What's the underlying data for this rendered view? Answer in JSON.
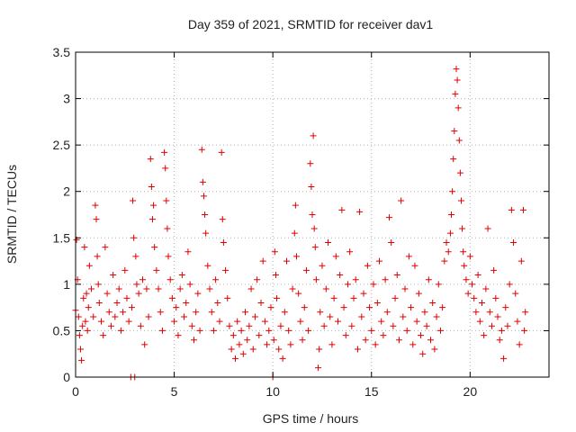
{
  "chart_data": {
    "type": "scatter",
    "title": "Day 359 of 2021, SRMTID for receiver dav1",
    "xlabel": "GPS time / hours",
    "ylabel": "SRMTID / TECUs",
    "xlim": [
      0,
      24
    ],
    "ylim": [
      0,
      3.5
    ],
    "x_ticks": [
      0,
      5,
      10,
      15,
      20
    ],
    "y_ticks": [
      0,
      0.5,
      1,
      1.5,
      2,
      2.5,
      3,
      3.5
    ],
    "x_tick_labels": [
      "0",
      "5",
      "10",
      "15",
      "20"
    ],
    "y_tick_labels": [
      "0",
      "0.5",
      "1",
      "1.5",
      "2",
      "2.5",
      "3",
      "3.5"
    ],
    "grid": true,
    "marker": "+",
    "series": [
      {
        "name": "SRMTID",
        "color": "#e00000",
        "points": [
          [
            0.0,
            0.72
          ],
          [
            0.05,
            1.48
          ],
          [
            0.1,
            1.05
          ],
          [
            0.15,
            0.65
          ],
          [
            0.2,
            0.45
          ],
          [
            0.25,
            0.3
          ],
          [
            0.3,
            0.18
          ],
          [
            0.35,
            0.55
          ],
          [
            0.4,
            0.85
          ],
          [
            0.45,
            1.4
          ],
          [
            0.5,
            0.6
          ],
          [
            0.55,
            0.9
          ],
          [
            0.6,
            0.5
          ],
          [
            0.65,
            0.75
          ],
          [
            0.7,
            1.2
          ],
          [
            0.8,
            0.95
          ],
          [
            0.9,
            0.65
          ],
          [
            1.0,
            1.85
          ],
          [
            1.05,
            1.7
          ],
          [
            1.1,
            1.3
          ],
          [
            1.15,
            1.0
          ],
          [
            1.2,
            0.8
          ],
          [
            1.3,
            0.6
          ],
          [
            1.4,
            0.45
          ],
          [
            1.5,
            1.4
          ],
          [
            1.6,
            0.9
          ],
          [
            1.7,
            0.7
          ],
          [
            1.8,
            0.55
          ],
          [
            1.9,
            1.1
          ],
          [
            2.0,
            0.65
          ],
          [
            2.1,
            0.8
          ],
          [
            2.2,
            0.95
          ],
          [
            2.3,
            0.5
          ],
          [
            2.4,
            0.7
          ],
          [
            2.5,
            1.15
          ],
          [
            2.6,
            0.85
          ],
          [
            2.7,
            0.6
          ],
          [
            2.8,
            0.0
          ],
          [
            2.85,
            0.75
          ],
          [
            2.9,
            1.9
          ],
          [
            2.95,
            1.5
          ],
          [
            3.0,
            0.0
          ],
          [
            3.05,
            1.3
          ],
          [
            3.1,
            1.0
          ],
          [
            3.2,
            0.9
          ],
          [
            3.3,
            0.55
          ],
          [
            3.4,
            1.05
          ],
          [
            3.5,
            0.35
          ],
          [
            3.6,
            0.95
          ],
          [
            3.7,
            0.65
          ],
          [
            3.8,
            2.35
          ],
          [
            3.85,
            2.05
          ],
          [
            3.9,
            1.7
          ],
          [
            3.95,
            1.85
          ],
          [
            4.0,
            1.4
          ],
          [
            4.1,
            1.15
          ],
          [
            4.2,
            0.95
          ],
          [
            4.3,
            0.7
          ],
          [
            4.4,
            0.5
          ],
          [
            4.5,
            2.42
          ],
          [
            4.55,
            2.25
          ],
          [
            4.6,
            1.9
          ],
          [
            4.65,
            1.6
          ],
          [
            4.7,
            1.3
          ],
          [
            4.8,
            1.05
          ],
          [
            4.9,
            0.85
          ],
          [
            5.0,
            0.6
          ],
          [
            5.1,
            0.75
          ],
          [
            5.2,
            0.45
          ],
          [
            5.3,
            0.95
          ],
          [
            5.4,
            1.1
          ],
          [
            5.5,
            0.65
          ],
          [
            5.6,
            0.8
          ],
          [
            5.7,
            1.35
          ],
          [
            5.8,
            1.0
          ],
          [
            5.9,
            0.55
          ],
          [
            6.0,
            0.4
          ],
          [
            6.1,
            0.7
          ],
          [
            6.2,
            0.9
          ],
          [
            6.3,
            0.5
          ],
          [
            6.4,
            2.45
          ],
          [
            6.45,
            2.1
          ],
          [
            6.5,
            1.95
          ],
          [
            6.55,
            1.75
          ],
          [
            6.6,
            1.55
          ],
          [
            6.7,
            1.2
          ],
          [
            6.8,
            0.95
          ],
          [
            6.9,
            0.7
          ],
          [
            7.0,
            0.5
          ],
          [
            7.1,
            1.05
          ],
          [
            7.2,
            0.8
          ],
          [
            7.3,
            0.6
          ],
          [
            7.4,
            2.42
          ],
          [
            7.45,
            1.7
          ],
          [
            7.5,
            1.45
          ],
          [
            7.6,
            1.15
          ],
          [
            7.7,
            0.85
          ],
          [
            7.8,
            0.55
          ],
          [
            7.9,
            0.3
          ],
          [
            8.0,
            0.45
          ],
          [
            8.1,
            0.2
          ],
          [
            8.2,
            0.6
          ],
          [
            8.3,
            0.35
          ],
          [
            8.4,
            0.5
          ],
          [
            8.5,
            0.25
          ],
          [
            8.6,
            0.7
          ],
          [
            8.7,
            0.4
          ],
          [
            8.8,
            0.55
          ],
          [
            8.9,
            0.95
          ],
          [
            9.0,
            0.3
          ],
          [
            9.1,
            0.65
          ],
          [
            9.2,
            1.05
          ],
          [
            9.3,
            0.45
          ],
          [
            9.4,
            0.8
          ],
          [
            9.5,
            1.25
          ],
          [
            9.6,
            0.6
          ],
          [
            9.7,
            0.35
          ],
          [
            9.8,
            0.5
          ],
          [
            9.9,
            0.75
          ],
          [
            10.0,
            0.0
          ],
          [
            10.05,
            0.4
          ],
          [
            10.1,
            1.35
          ],
          [
            10.15,
            1.1
          ],
          [
            10.2,
            0.85
          ],
          [
            10.3,
            0.3
          ],
          [
            10.4,
            0.55
          ],
          [
            10.5,
            0.2
          ],
          [
            10.6,
            0.7
          ],
          [
            10.7,
            1.25
          ],
          [
            10.8,
            0.5
          ],
          [
            10.9,
            0.35
          ],
          [
            11.0,
            0.95
          ],
          [
            11.1,
            1.55
          ],
          [
            11.15,
            1.85
          ],
          [
            11.2,
            1.3
          ],
          [
            11.3,
            0.9
          ],
          [
            11.4,
            0.6
          ],
          [
            11.5,
            0.4
          ],
          [
            11.6,
            0.75
          ],
          [
            11.7,
            1.15
          ],
          [
            11.8,
            0.5
          ],
          [
            11.9,
            2.3
          ],
          [
            11.95,
            2.05
          ],
          [
            12.0,
            1.75
          ],
          [
            12.05,
            2.6
          ],
          [
            12.1,
            1.6
          ],
          [
            12.15,
            1.4
          ],
          [
            12.2,
            1.05
          ],
          [
            12.3,
            0.1
          ],
          [
            12.35,
            0.3
          ],
          [
            12.4,
            0.7
          ],
          [
            12.5,
            1.2
          ],
          [
            12.6,
            0.55
          ],
          [
            12.7,
            0.95
          ],
          [
            12.8,
            1.45
          ],
          [
            12.9,
            0.65
          ],
          [
            13.0,
            0.35
          ],
          [
            13.1,
            0.85
          ],
          [
            13.2,
            1.3
          ],
          [
            13.3,
            0.6
          ],
          [
            13.4,
            1.1
          ],
          [
            13.5,
            1.8
          ],
          [
            13.6,
            0.75
          ],
          [
            13.7,
            0.45
          ],
          [
            13.8,
            1.0
          ],
          [
            13.9,
            1.35
          ],
          [
            14.0,
            0.55
          ],
          [
            14.1,
            0.85
          ],
          [
            14.2,
            1.05
          ],
          [
            14.3,
            0.3
          ],
          [
            14.4,
            1.78
          ],
          [
            14.5,
            0.65
          ],
          [
            14.6,
            0.9
          ],
          [
            14.7,
            0.4
          ],
          [
            14.8,
            1.2
          ],
          [
            14.9,
            0.75
          ],
          [
            15.0,
            0.5
          ],
          [
            15.1,
            1.0
          ],
          [
            15.2,
            0.35
          ],
          [
            15.3,
            0.8
          ],
          [
            15.4,
            1.25
          ],
          [
            15.5,
            0.6
          ],
          [
            15.6,
            0.45
          ],
          [
            15.7,
            1.05
          ],
          [
            15.8,
            0.7
          ],
          [
            15.9,
            1.72
          ],
          [
            16.0,
            1.45
          ],
          [
            16.1,
            0.55
          ],
          [
            16.2,
            0.85
          ],
          [
            16.3,
            1.1
          ],
          [
            16.4,
            0.4
          ],
          [
            16.5,
            1.9
          ],
          [
            16.6,
            0.65
          ],
          [
            16.7,
            0.95
          ],
          [
            16.8,
            0.5
          ],
          [
            16.9,
            1.3
          ],
          [
            17.0,
            0.75
          ],
          [
            17.1,
            0.35
          ],
          [
            17.2,
            1.2
          ],
          [
            17.3,
            0.6
          ],
          [
            17.4,
            0.9
          ],
          [
            17.5,
            0.45
          ],
          [
            17.6,
            0.25
          ],
          [
            17.7,
            0.7
          ],
          [
            17.8,
            0.55
          ],
          [
            17.9,
            1.05
          ],
          [
            18.0,
            0.4
          ],
          [
            18.1,
            0.8
          ],
          [
            18.2,
            0.3
          ],
          [
            18.3,
            0.65
          ],
          [
            18.4,
            1.0
          ],
          [
            18.5,
            0.5
          ],
          [
            18.6,
            0.75
          ],
          [
            18.7,
            1.25
          ],
          [
            18.8,
            1.45
          ],
          [
            18.9,
            1.35
          ],
          [
            19.0,
            1.55
          ],
          [
            19.05,
            1.75
          ],
          [
            19.1,
            2.0
          ],
          [
            19.15,
            2.35
          ],
          [
            19.2,
            2.65
          ],
          [
            19.25,
            3.05
          ],
          [
            19.3,
            3.32
          ],
          [
            19.35,
            3.2
          ],
          [
            19.4,
            2.9
          ],
          [
            19.45,
            2.55
          ],
          [
            19.5,
            2.2
          ],
          [
            19.55,
            1.9
          ],
          [
            19.6,
            1.6
          ],
          [
            19.65,
            1.35
          ],
          [
            19.7,
            1.2
          ],
          [
            19.8,
            1.05
          ],
          [
            19.9,
            0.9
          ],
          [
            20.0,
            1.3
          ],
          [
            20.1,
            1.0
          ],
          [
            20.2,
            0.85
          ],
          [
            20.3,
            0.7
          ],
          [
            20.4,
            1.1
          ],
          [
            20.5,
            0.6
          ],
          [
            20.6,
            0.8
          ],
          [
            20.7,
            0.45
          ],
          [
            20.8,
            0.95
          ],
          [
            20.9,
            1.6
          ],
          [
            21.0,
            0.7
          ],
          [
            21.1,
            0.55
          ],
          [
            21.2,
            1.15
          ],
          [
            21.3,
            0.85
          ],
          [
            21.4,
            0.65
          ],
          [
            21.5,
            0.4
          ],
          [
            21.6,
            0.5
          ],
          [
            21.7,
            0.2
          ],
          [
            21.8,
            0.75
          ],
          [
            21.9,
            0.55
          ],
          [
            22.0,
            1.0
          ],
          [
            22.1,
            1.8
          ],
          [
            22.2,
            1.45
          ],
          [
            22.3,
            0.9
          ],
          [
            22.4,
            0.6
          ],
          [
            22.5,
            0.35
          ],
          [
            22.6,
            1.25
          ],
          [
            22.7,
            1.8
          ],
          [
            22.75,
            0.5
          ],
          [
            22.8,
            0.7
          ]
        ]
      }
    ]
  }
}
